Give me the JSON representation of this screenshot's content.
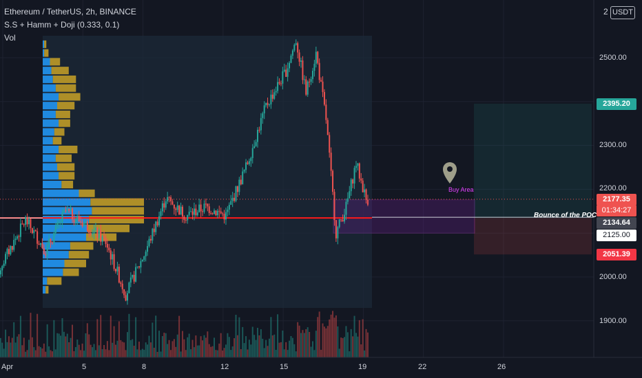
{
  "header": {
    "symbol_line": "Ethereum / TetherUS, 2h, BINANCE",
    "indicator_line": "S.S + Hamm + Doji (0.333, 0.1)",
    "volume_label": "Vol"
  },
  "currency": {
    "label": "USDT",
    "left_digit": "2"
  },
  "price_axis": [
    "2500.00",
    "2300.00",
    "2200.00",
    "2000.00",
    "1900.00"
  ],
  "price_tags": {
    "target": "2395.20",
    "last": "2177.35",
    "countdown": "01:34:27",
    "poc": "2134.64",
    "buy": "2125.00",
    "stop": "2051.39"
  },
  "time_axis": [
    "Apr",
    "5",
    "8",
    "12",
    "15",
    "19",
    "22",
    "26"
  ],
  "annotations": {
    "buy_area": "Buy Area",
    "bounce": "Bounce of the POC"
  },
  "colors": {
    "background": "#131722",
    "up": "#26a69a",
    "down": "#ef5350",
    "vp_up": "#2196f3",
    "vp_down": "#c9a227",
    "poc_line": "#ff1a1a",
    "buy_zone": "#e040fb"
  },
  "chart_data": {
    "type": "candlestick",
    "symbol": "Ethereum / TetherUS",
    "interval": "2h",
    "exchange": "BINANCE",
    "ylim": [
      1830,
      2660
    ],
    "price_levels": {
      "last": 2177.35,
      "poc": 2134.64,
      "entry": 2125.0,
      "target": 2395.2,
      "stop": 2051.39
    },
    "path_keypoints": [
      {
        "day": 0,
        "close": 1960
      },
      {
        "day": 2,
        "close": 2130
      },
      {
        "day": 3,
        "close": 2060
      },
      {
        "day": 4,
        "close": 2150
      },
      {
        "day": 5,
        "close": 2120
      },
      {
        "day": 6,
        "close": 2080
      },
      {
        "day": 7,
        "close": 1960
      },
      {
        "day": 8,
        "close": 2060
      },
      {
        "day": 9,
        "close": 2180
      },
      {
        "day": 10,
        "close": 2140
      },
      {
        "day": 11,
        "close": 2160
      },
      {
        "day": 12,
        "close": 2140
      },
      {
        "day": 13,
        "close": 2250
      },
      {
        "day": 14,
        "close": 2390
      },
      {
        "day": 15,
        "close": 2470
      },
      {
        "day": 15.5,
        "close": 2540
      },
      {
        "day": 16,
        "close": 2420
      },
      {
        "day": 16.5,
        "close": 2510
      },
      {
        "day": 17,
        "close": 2360
      },
      {
        "day": 17.5,
        "close": 2100
      },
      {
        "day": 18,
        "close": 2160
      },
      {
        "day": 18.5,
        "close": 2260
      },
      {
        "day": 19,
        "close": 2177
      }
    ],
    "volume_profile": {
      "rows": [
        {
          "price": 2530,
          "up": 2,
          "down": 3
        },
        {
          "price": 2510,
          "up": 2,
          "down": 6
        },
        {
          "price": 2490,
          "up": 10,
          "down": 14
        },
        {
          "price": 2470,
          "up": 12,
          "down": 24
        },
        {
          "price": 2450,
          "up": 14,
          "down": 32
        },
        {
          "price": 2430,
          "up": 18,
          "down": 28
        },
        {
          "price": 2410,
          "up": 22,
          "down": 30
        },
        {
          "price": 2390,
          "up": 20,
          "down": 24
        },
        {
          "price": 2370,
          "up": 18,
          "down": 20
        },
        {
          "price": 2350,
          "up": 22,
          "down": 16
        },
        {
          "price": 2330,
          "up": 16,
          "down": 14
        },
        {
          "price": 2310,
          "up": 14,
          "down": 12
        },
        {
          "price": 2290,
          "up": 22,
          "down": 26
        },
        {
          "price": 2270,
          "up": 18,
          "down": 22
        },
        {
          "price": 2250,
          "up": 20,
          "down": 24
        },
        {
          "price": 2230,
          "up": 22,
          "down": 22
        },
        {
          "price": 2210,
          "up": 26,
          "down": 16
        },
        {
          "price": 2190,
          "up": 50,
          "down": 22
        },
        {
          "price": 2170,
          "up": 66,
          "down": 74
        },
        {
          "price": 2150,
          "up": 68,
          "down": 72
        },
        {
          "price": 2130,
          "up": 64,
          "down": 76
        },
        {
          "price": 2110,
          "up": 62,
          "down": 58
        },
        {
          "price": 2090,
          "up": 60,
          "down": 42
        },
        {
          "price": 2070,
          "up": 38,
          "down": 32
        },
        {
          "price": 2050,
          "up": 36,
          "down": 28
        },
        {
          "price": 2030,
          "up": 30,
          "down": 30
        },
        {
          "price": 2010,
          "up": 28,
          "down": 22
        },
        {
          "price": 1990,
          "up": 6,
          "down": 20
        },
        {
          "price": 1970,
          "up": 4,
          "down": 4
        }
      ]
    }
  }
}
